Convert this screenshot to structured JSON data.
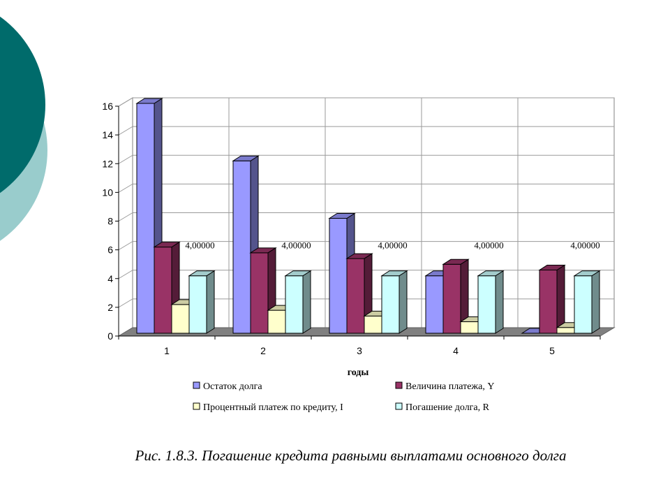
{
  "caption": "Рис. 1.8.3. Погашение кредита равными выплатами основного долга",
  "chart_data": {
    "type": "bar",
    "style": "3d-clustered",
    "categories": [
      "1",
      "2",
      "3",
      "4",
      "5"
    ],
    "xlabel": "годы",
    "ylabel": "",
    "ylim": [
      0,
      16
    ],
    "yticks": [
      0,
      2,
      4,
      6,
      8,
      10,
      12,
      14,
      16
    ],
    "grid": true,
    "legend_position": "bottom",
    "series": [
      {
        "name": "Остаток долга",
        "color": "#9999ff",
        "values": [
          16,
          12,
          8,
          4,
          0
        ]
      },
      {
        "name": "Величина платежа, Y",
        "color": "#993366",
        "values": [
          6,
          5.6,
          5.2,
          4.8,
          4.4
        ]
      },
      {
        "name": "Процентный платеж по кредиту, I",
        "color": "#ffffcc",
        "values": [
          2,
          1.6,
          1.2,
          0.8,
          0.4
        ]
      },
      {
        "name": "Погашение долга, R",
        "color": "#ccffff",
        "values": [
          4,
          4,
          4,
          4,
          4
        ]
      }
    ],
    "data_labels": {
      "series_index": 3,
      "text": [
        "4,00000",
        "4,00000",
        "4,00000",
        "4,00000",
        "4,00000"
      ]
    }
  },
  "colors": {
    "deco_dark": "#006b6b",
    "deco_light": "#99cccc"
  }
}
